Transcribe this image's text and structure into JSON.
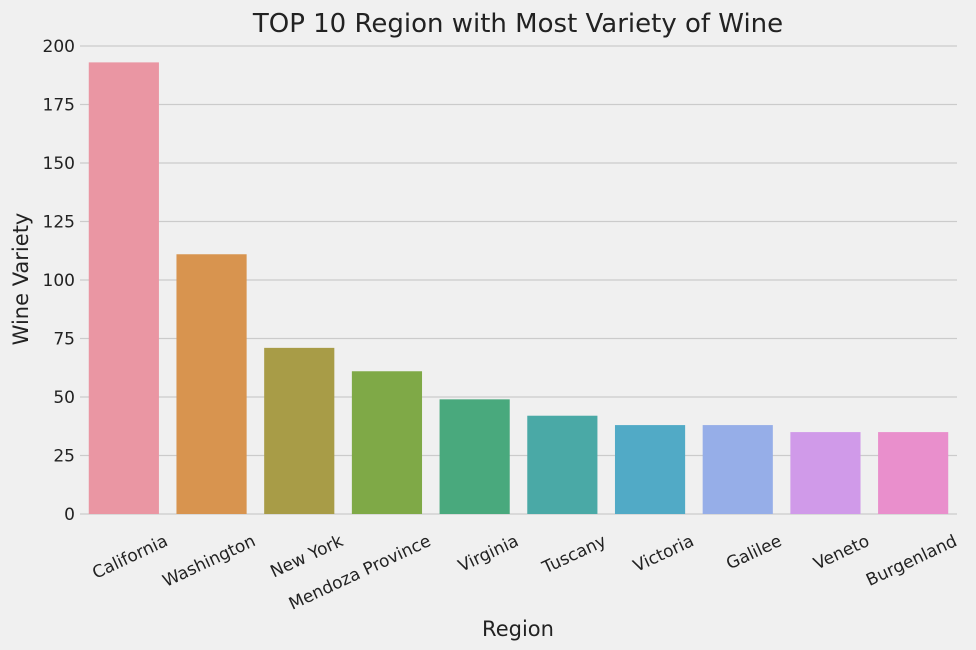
{
  "chart_data": {
    "type": "bar",
    "title": "TOP 10 Region with Most Variety of Wine",
    "xlabel": "Region",
    "ylabel": "Wine Variety",
    "categories": [
      "California",
      "Washington",
      "New York",
      "Mendoza Province",
      "Virginia",
      "Tuscany",
      "Victoria",
      "Galilee",
      "Veneto",
      "Burgenland"
    ],
    "values": [
      193,
      111,
      71,
      61,
      49,
      42,
      38,
      38,
      35,
      35
    ],
    "ylim": [
      0,
      200
    ],
    "yticks": [
      0,
      25,
      50,
      75,
      100,
      125,
      150,
      175,
      200
    ],
    "grid": "horizontal",
    "colors": [
      "#ea96a3",
      "#d8944f",
      "#a89c47",
      "#7fa947",
      "#49a97d",
      "#4aa9a6",
      "#51aac6",
      "#96aee8",
      "#d09ae9",
      "#e98fcc"
    ],
    "background": "#f0f0f0"
  }
}
